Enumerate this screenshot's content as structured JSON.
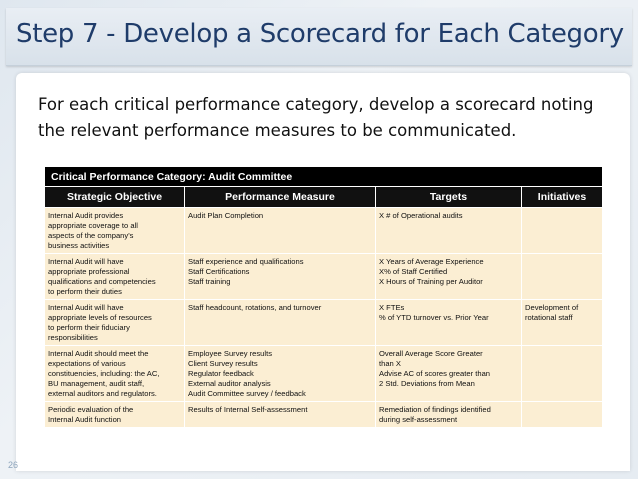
{
  "slide": {
    "title": "Step 7 - Develop a Scorecard for Each Category",
    "intro_line1": "For each critical performance category, develop a scorecard noting",
    "intro_line2": "the relevant performance measures to be communicated.",
    "page_number": "26"
  },
  "table": {
    "caption": "Critical Performance Category:  Audit Committee",
    "headers": [
      "Strategic Objective",
      "Performance Measure",
      "Targets",
      "Initiatives"
    ],
    "rows": [
      {
        "objective": [
          "Internal Audit provides",
          "appropriate coverage to all",
          "aspects of the company's",
          "business activities"
        ],
        "measure": [
          "Audit Plan Completion"
        ],
        "targets": [
          "X # of Operational audits"
        ],
        "initiatives": []
      },
      {
        "objective": [
          "Internal Audit will have",
          "appropriate professional",
          "qualifications and competencies",
          "to perform their duties"
        ],
        "measure": [
          "Staff experience and qualifications",
          "Staff Certifications",
          "Staff training"
        ],
        "targets": [
          "X Years of Average Experience",
          "X% of Staff Certified",
          "X Hours of Training per Auditor"
        ],
        "initiatives": []
      },
      {
        "objective": [
          "Internal Audit will have",
          "appropriate levels of resources",
          "to perform their fiduciary",
          "responsibilities"
        ],
        "measure": [
          "Staff headcount, rotations, and turnover"
        ],
        "targets": [
          "X FTEs",
          "% of YTD turnover vs. Prior Year"
        ],
        "initiatives": [
          "Development of",
          "rotational staff"
        ]
      },
      {
        "objective": [
          "Internal Audit should meet the",
          "expectations of various",
          "constituencies, including: the AC,",
          "BU management, audit staff,",
          "external auditors and regulators."
        ],
        "measure": [
          "Employee Survey results",
          "Client Survey results",
          "Regulator feedback",
          "External auditor analysis",
          "Audit Committee survey / feedback"
        ],
        "targets": [
          "Overall Average Score Greater",
          "than X",
          "Advise AC of scores greater than",
          "2 Std. Deviations from Mean"
        ],
        "initiatives": []
      },
      {
        "objective": [
          "Periodic evaluation of the",
          "Internal Audit function"
        ],
        "measure": [
          "Results of Internal Self-assessment"
        ],
        "targets": [
          "Remediation of findings identified",
          "during self-assessment"
        ],
        "initiatives": []
      }
    ]
  }
}
